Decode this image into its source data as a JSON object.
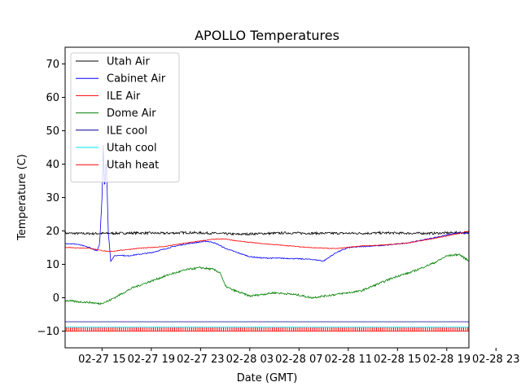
{
  "chart_data": {
    "type": "line",
    "title": "APOLLO Temperatures",
    "xlabel": "Date (GMT)",
    "ylabel": "Temperature (C)",
    "xlim": [
      0,
      32.8
    ],
    "ylim": [
      -15,
      75
    ],
    "x_unit": "hours since 02-27 12:00 GMT",
    "x_ticks": [
      {
        "value": 3,
        "label": "02-27 15"
      },
      {
        "value": 7,
        "label": "02-27 19"
      },
      {
        "value": 11,
        "label": "02-27 23"
      },
      {
        "value": 15,
        "label": "02-28 03"
      },
      {
        "value": 19,
        "label": "02-28 07"
      },
      {
        "value": 23,
        "label": "02-28 11"
      },
      {
        "value": 27,
        "label": "02-28 15"
      },
      {
        "value": 31,
        "label": "02-28 19"
      },
      {
        "value": 35,
        "label": "02-28 23"
      }
    ],
    "y_ticks": [
      -10,
      0,
      10,
      20,
      30,
      40,
      50,
      60,
      70
    ],
    "legend_position": "upper-left",
    "grid": false,
    "series": [
      {
        "name": "Utah Air",
        "color": "#000000",
        "x": [
          0,
          2,
          4,
          6,
          8,
          10,
          12,
          14,
          16,
          18,
          20,
          22,
          24,
          26,
          28,
          30,
          32,
          32.8
        ],
        "y": [
          19.3,
          19.2,
          19.3,
          19.4,
          19.3,
          19.5,
          19.3,
          19.0,
          19.2,
          19.4,
          19.3,
          19.3,
          19.3,
          19.4,
          19.3,
          19.3,
          19.5,
          19.4
        ],
        "noise": 0.35
      },
      {
        "name": "Cabinet Air",
        "color": "#0000ff",
        "x": [
          0,
          1,
          2,
          2.6,
          2.8,
          3.0,
          3.1,
          3.2,
          3.35,
          3.5,
          3.7,
          4.0,
          4.5,
          5,
          6,
          7,
          8,
          9,
          10,
          11,
          11.5,
          12,
          12.5,
          13,
          14,
          15,
          16,
          18,
          20,
          21,
          22,
          23,
          24,
          26,
          28,
          30,
          32,
          32.8
        ],
        "y": [
          16.3,
          16.0,
          15.0,
          14.0,
          16.0,
          30.0,
          47.0,
          32.0,
          42.0,
          20.0,
          11.0,
          12.5,
          12.8,
          12.5,
          13.0,
          13.5,
          14.5,
          15.5,
          16.2,
          16.7,
          16.9,
          16.6,
          15.8,
          14.8,
          13.5,
          12.3,
          11.9,
          11.8,
          11.5,
          11.0,
          13.5,
          15.0,
          15.3,
          15.7,
          16.5,
          18.0,
          19.5,
          19.2
        ],
        "noise": 0.15
      },
      {
        "name": "ILE Air",
        "color": "#ff0000",
        "x": [
          0,
          2,
          3.5,
          4.5,
          6,
          8,
          10,
          12,
          13,
          14,
          16,
          18,
          20,
          22,
          24,
          26,
          28,
          30,
          32,
          32.8
        ],
        "y": [
          15.1,
          14.8,
          13.8,
          14.2,
          14.8,
          15.3,
          16.5,
          17.5,
          17.6,
          17.0,
          16.2,
          15.6,
          15.0,
          14.7,
          15.5,
          15.8,
          16.5,
          17.8,
          19.2,
          20.0
        ],
        "noise": 0.1
      },
      {
        "name": "Dome Air",
        "color": "#008000",
        "x": [
          0,
          1,
          2,
          2.8,
          3.5,
          4.5,
          5.5,
          7,
          8.5,
          10,
          11,
          12,
          12.6,
          13,
          13.5,
          15,
          16,
          17,
          18,
          19,
          20,
          21,
          22,
          23,
          24,
          25,
          26,
          27,
          28,
          29,
          30,
          31,
          32,
          32.8
        ],
        "y": [
          -0.8,
          -1.2,
          -1.4,
          -1.8,
          -1.0,
          1.0,
          3.0,
          5.0,
          7.0,
          8.5,
          9.0,
          8.5,
          7.5,
          3.5,
          2.5,
          0.5,
          1.0,
          1.5,
          1.2,
          0.8,
          0.0,
          0.5,
          1.0,
          1.5,
          2.0,
          3.5,
          5.0,
          6.5,
          7.5,
          9.0,
          10.5,
          12.5,
          13.0,
          11.0
        ],
        "noise": 0.3
      },
      {
        "name": "ILE cool",
        "color": "#00008b",
        "x": [
          0,
          32.8
        ],
        "y": [
          -7.2,
          -7.2
        ],
        "noise": 0
      },
      {
        "name": "Utah cool",
        "color": "#00e5ff",
        "x": [
          0,
          32.8
        ],
        "y": [
          -8.8,
          -8.8
        ],
        "noise": 0
      },
      {
        "name": "Utah heat",
        "color": "#ff0000",
        "baseline": -10.0,
        "pulse_top": -9.0,
        "pulse_count": 190,
        "x": [
          0,
          32.8
        ],
        "y": [
          -10.0,
          -10.0
        ],
        "noise": 0
      }
    ]
  }
}
